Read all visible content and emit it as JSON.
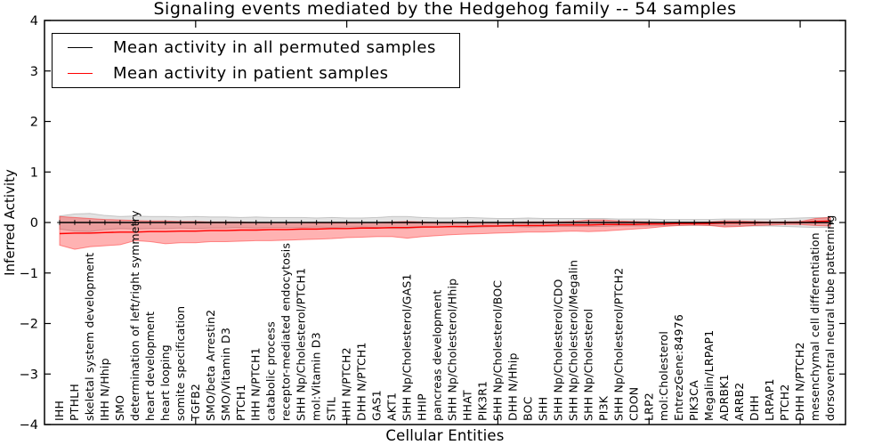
{
  "chart_data": {
    "type": "line",
    "title": "Signaling events mediated by the Hedgehog family -- 54 samples",
    "xlabel": "Cellular Entities",
    "ylabel": "Inferred Activity",
    "ylim": [
      -4,
      4
    ],
    "xlim": [
      0,
      53
    ],
    "yticks": [
      4,
      3,
      2,
      1,
      0,
      -1,
      -2,
      -3,
      -4
    ],
    "xticks": [
      10,
      20,
      30,
      40,
      50
    ],
    "grid": false,
    "legend_position": "upper left",
    "categories": [
      "IHH",
      "PTHLH",
      "skeletal system development",
      "IHH N/Hhip",
      "SMO",
      "determination of left/right symmetry",
      "heart development",
      "heart looping",
      "somite specification",
      "TGFB2",
      "SMO/beta Arrestin2",
      "SMO/Vitamin D3",
      "PTCH1",
      "IHH N/PTCH1",
      "catabolic process",
      "receptor-mediated endocytosis",
      "SHH Np/Cholesterol/PTCH1",
      "mol:Vitamin D3",
      "STIL",
      "IHH N/PTCH2",
      "DHH N/PTCH1",
      "GAS1",
      "AKT1",
      "SHH Np/Cholesterol/GAS1",
      "HHIP",
      "pancreas development",
      "SHH Np/Cholesterol/Hhip",
      "HHAT",
      "PIK3R1",
      "SHH Np/Cholesterol/BOC",
      "DHH N/Hhip",
      "BOC",
      "SHH",
      "SHH Np/Cholesterol/CDO",
      "SHH Np/Cholesterol/Megalin",
      "SHH Np/Cholesterol",
      "PI3K",
      "SHH Np/Cholesterol/PTCH2",
      "CDON",
      "LRP2",
      "mol:Cholesterol",
      "EntrezGene:84976",
      "PIK3CA",
      "Megalin/LRPAP1",
      "ADRBK1",
      "ARRB2",
      "DHH",
      "LRPAP1",
      "PTCH2",
      "DHH N/PTCH2",
      "mesenchymal cell differentiation",
      "dorsoventral neural tube patterning"
    ],
    "series": [
      {
        "id": "permuted",
        "name": "Mean activity in all permuted samples",
        "color": "#000000",
        "marker": "plus",
        "values": [
          0,
          0,
          0,
          0,
          0,
          0,
          0,
          0,
          0,
          0,
          0,
          0,
          0,
          0,
          0,
          0,
          0,
          0,
          0,
          0,
          0,
          0,
          0,
          0,
          0,
          0,
          0,
          0,
          0,
          0,
          0,
          0,
          0,
          0,
          0,
          0,
          0,
          0,
          0,
          0,
          0,
          0,
          0,
          0,
          0,
          0,
          0,
          0,
          0,
          0,
          0,
          0
        ]
      },
      {
        "id": "patient",
        "name": "Mean activity in patient samples",
        "color": "#ff0000",
        "marker": "none",
        "values": [
          -0.22,
          -0.21,
          -0.21,
          -0.2,
          -0.19,
          -0.19,
          -0.18,
          -0.18,
          -0.17,
          -0.17,
          -0.16,
          -0.16,
          -0.15,
          -0.15,
          -0.14,
          -0.14,
          -0.13,
          -0.13,
          -0.12,
          -0.12,
          -0.11,
          -0.11,
          -0.1,
          -0.1,
          -0.09,
          -0.09,
          -0.08,
          -0.08,
          -0.07,
          -0.07,
          -0.06,
          -0.06,
          -0.06,
          -0.05,
          -0.05,
          -0.05,
          -0.04,
          -0.04,
          -0.04,
          -0.03,
          -0.03,
          -0.02,
          -0.02,
          -0.02,
          -0.01,
          -0.01,
          -0.01,
          0.0,
          0.0,
          0.0,
          0.02,
          0.03
        ]
      }
    ],
    "bands": [
      {
        "id": "permuted-band",
        "name": "permuted samples confidence band",
        "color": "#000000",
        "fill_alpha": 0.11,
        "edge_alpha": 0.18,
        "upper": [
          0.13,
          0.17,
          0.18,
          0.14,
          0.12,
          0.13,
          0.12,
          0.12,
          0.11,
          0.12,
          0.11,
          0.11,
          0.1,
          0.11,
          0.1,
          0.1,
          0.1,
          0.09,
          0.1,
          0.09,
          0.09,
          0.1,
          0.12,
          0.12,
          0.1,
          0.09,
          0.09,
          0.1,
          0.09,
          0.08,
          0.08,
          0.09,
          0.08,
          0.08,
          0.08,
          0.08,
          0.08,
          0.07,
          0.07,
          0.07,
          0.06,
          0.06,
          0.06,
          0.06,
          0.07,
          0.07,
          0.07,
          0.07,
          0.08,
          0.09,
          0.1,
          0.1
        ],
        "lower": [
          -0.13,
          -0.17,
          -0.18,
          -0.14,
          -0.12,
          -0.13,
          -0.12,
          -0.12,
          -0.11,
          -0.12,
          -0.11,
          -0.11,
          -0.1,
          -0.11,
          -0.1,
          -0.1,
          -0.1,
          -0.09,
          -0.1,
          -0.09,
          -0.09,
          -0.1,
          -0.12,
          -0.12,
          -0.1,
          -0.09,
          -0.09,
          -0.1,
          -0.09,
          -0.08,
          -0.08,
          -0.09,
          -0.08,
          -0.08,
          -0.08,
          -0.08,
          -0.08,
          -0.07,
          -0.07,
          -0.07,
          -0.06,
          -0.06,
          -0.06,
          -0.06,
          -0.07,
          -0.07,
          -0.07,
          -0.07,
          -0.08,
          -0.09,
          -0.1,
          -0.1
        ]
      },
      {
        "id": "patient-band",
        "name": "patient samples confidence band",
        "color": "#ff0000",
        "fill_alpha": 0.3,
        "edge_alpha": 0.4,
        "upper": [
          0.12,
          0.1,
          0.08,
          0.06,
          0.05,
          0.04,
          0.03,
          0.03,
          0.02,
          0.02,
          0.01,
          0.01,
          0.01,
          0.0,
          0.0,
          0.0,
          0.0,
          -0.01,
          -0.01,
          -0.01,
          0.0,
          0.0,
          0.01,
          0.02,
          0.01,
          0.0,
          0.0,
          0.0,
          0.0,
          0.0,
          0.0,
          0.01,
          0.01,
          0.01,
          0.02,
          0.05,
          0.05,
          0.03,
          0.02,
          0.01,
          0.0,
          0.0,
          0.0,
          0.01,
          0.03,
          0.03,
          0.02,
          0.01,
          0.01,
          0.02,
          0.08,
          0.1
        ],
        "lower": [
          -0.45,
          -0.53,
          -0.48,
          -0.46,
          -0.44,
          -0.36,
          -0.38,
          -0.42,
          -0.4,
          -0.4,
          -0.38,
          -0.38,
          -0.37,
          -0.36,
          -0.36,
          -0.35,
          -0.34,
          -0.33,
          -0.32,
          -0.3,
          -0.29,
          -0.28,
          -0.28,
          -0.31,
          -0.28,
          -0.26,
          -0.24,
          -0.23,
          -0.22,
          -0.21,
          -0.2,
          -0.19,
          -0.19,
          -0.18,
          -0.17,
          -0.18,
          -0.17,
          -0.15,
          -0.13,
          -0.11,
          -0.08,
          -0.06,
          -0.05,
          -0.06,
          -0.09,
          -0.08,
          -0.06,
          -0.05,
          -0.04,
          -0.04,
          -0.06,
          -0.07
        ]
      }
    ]
  }
}
